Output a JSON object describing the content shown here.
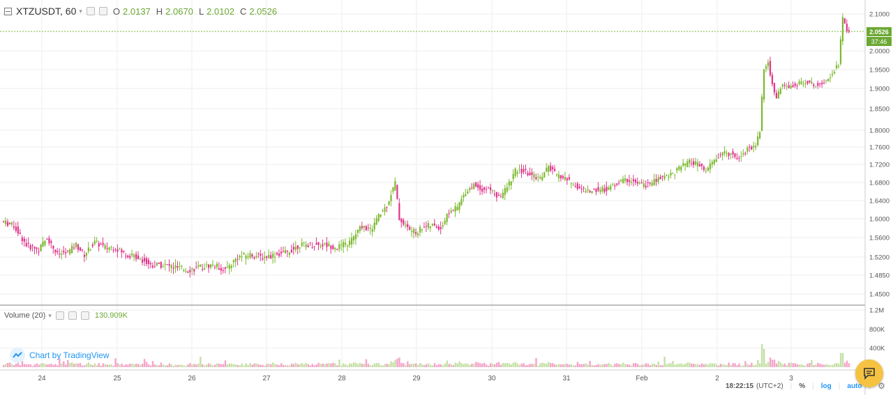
{
  "legend": {
    "symbol": "XTZUSDT, 60",
    "o_label": "O",
    "o_value": "2.0137",
    "h_label": "H",
    "h_value": "2.0670",
    "l_label": "L",
    "l_value": "2.0102",
    "c_label": "C",
    "c_value": "2.0526"
  },
  "volume_legend": {
    "label": "Volume (20)",
    "value": "130.909K"
  },
  "branding": {
    "text": "Chart by TradingView"
  },
  "price_tag": {
    "price": "2.0526",
    "countdown": "37:46"
  },
  "footer": {
    "time": "18:22:15",
    "timezone": "(UTC+2)",
    "percent": "%",
    "log": "log",
    "auto": "auto"
  },
  "colors": {
    "up": "#7cb82f",
    "down": "#e0338b",
    "up_vol": "#c5e0a5",
    "down_vol": "#f5a3c9",
    "grid": "#eeeeee"
  },
  "icons": {
    "collapse": "square-minus-icon",
    "chat": "chat-bubble-icon",
    "settings": "gear-icon",
    "brand": "cloud-icon"
  },
  "chart_data": {
    "type": "candlestick",
    "symbol": "XTZUSDT",
    "interval": "60",
    "y_ticks": [
      "2.1000",
      "2.0000",
      "1.9500",
      "1.9000",
      "1.8500",
      "1.8000",
      "1.7600",
      "1.7200",
      "1.6800",
      "1.6400",
      "1.6000",
      "1.5600",
      "1.5200",
      "1.4850",
      "1.4500"
    ],
    "y_range": [
      1.43,
      2.115
    ],
    "x_ticks": [
      "24",
      "25",
      "26",
      "27",
      "28",
      "29",
      "30",
      "31",
      "Feb",
      "2",
      "3"
    ],
    "volume_ticks": [
      "1.2M",
      "800K",
      "400K"
    ],
    "volume_range": [
      0,
      1200000
    ],
    "price_path": [
      [
        0,
        1.595
      ],
      [
        6,
        1.585
      ],
      [
        12,
        1.545
      ],
      [
        18,
        1.535
      ],
      [
        22,
        1.56
      ],
      [
        27,
        1.525
      ],
      [
        32,
        1.53
      ],
      [
        36,
        1.545
      ],
      [
        40,
        1.525
      ],
      [
        45,
        1.55
      ],
      [
        50,
        1.54
      ],
      [
        55,
        1.54
      ],
      [
        60,
        1.525
      ],
      [
        66,
        1.52
      ],
      [
        72,
        1.505
      ],
      [
        78,
        1.505
      ],
      [
        84,
        1.5
      ],
      [
        90,
        1.495
      ],
      [
        96,
        1.5
      ],
      [
        102,
        1.505
      ],
      [
        108,
        1.495
      ],
      [
        114,
        1.52
      ],
      [
        120,
        1.525
      ],
      [
        126,
        1.52
      ],
      [
        132,
        1.525
      ],
      [
        138,
        1.53
      ],
      [
        144,
        1.545
      ],
      [
        150,
        1.545
      ],
      [
        156,
        1.545
      ],
      [
        162,
        1.54
      ],
      [
        168,
        1.55
      ],
      [
        174,
        1.585
      ],
      [
        178,
        1.575
      ],
      [
        182,
        1.605
      ],
      [
        186,
        1.63
      ],
      [
        190,
        1.68
      ],
      [
        192,
        1.6
      ],
      [
        196,
        1.58
      ],
      [
        200,
        1.57
      ],
      [
        204,
        1.585
      ],
      [
        208,
        1.585
      ],
      [
        212,
        1.58
      ],
      [
        216,
        1.615
      ],
      [
        220,
        1.625
      ],
      [
        224,
        1.66
      ],
      [
        228,
        1.675
      ],
      [
        232,
        1.665
      ],
      [
        236,
        1.665
      ],
      [
        240,
        1.645
      ],
      [
        244,
        1.67
      ],
      [
        248,
        1.705
      ],
      [
        252,
        1.705
      ],
      [
        256,
        1.695
      ],
      [
        260,
        1.69
      ],
      [
        264,
        1.715
      ],
      [
        268,
        1.695
      ],
      [
        272,
        1.69
      ],
      [
        276,
        1.675
      ],
      [
        280,
        1.665
      ],
      [
        284,
        1.66
      ],
      [
        288,
        1.665
      ],
      [
        292,
        1.665
      ],
      [
        296,
        1.675
      ],
      [
        300,
        1.685
      ],
      [
        304,
        1.685
      ],
      [
        308,
        1.675
      ],
      [
        312,
        1.675
      ],
      [
        316,
        1.685
      ],
      [
        320,
        1.695
      ],
      [
        324,
        1.7
      ],
      [
        328,
        1.715
      ],
      [
        332,
        1.725
      ],
      [
        336,
        1.72
      ],
      [
        340,
        1.705
      ],
      [
        344,
        1.73
      ],
      [
        348,
        1.745
      ],
      [
        352,
        1.745
      ],
      [
        356,
        1.735
      ],
      [
        360,
        1.755
      ],
      [
        364,
        1.765
      ],
      [
        366,
        1.8
      ],
      [
        368,
        1.95
      ],
      [
        370,
        1.97
      ],
      [
        372,
        1.91
      ],
      [
        374,
        1.875
      ],
      [
        376,
        1.905
      ],
      [
        380,
        1.905
      ],
      [
        384,
        1.91
      ],
      [
        388,
        1.92
      ],
      [
        392,
        1.91
      ],
      [
        396,
        1.915
      ],
      [
        400,
        1.935
      ],
      [
        404,
        1.965
      ],
      [
        406,
        2.09
      ],
      [
        408,
        2.0526
      ]
    ],
    "last_close": 2.0526
  }
}
